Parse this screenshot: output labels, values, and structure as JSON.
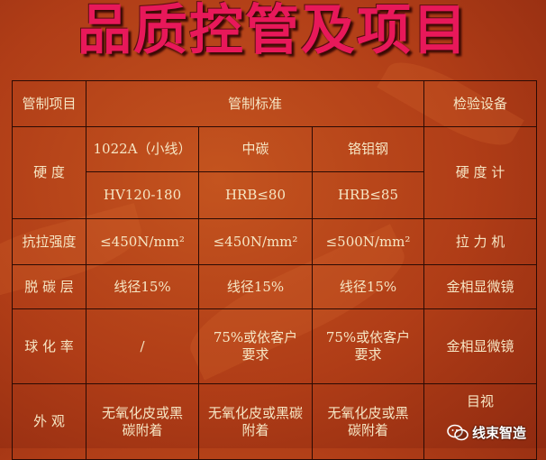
{
  "title": "品质控管及项目",
  "table": {
    "headers": [
      "管制项目",
      "管制标准",
      "检验设备"
    ],
    "hardness": {
      "label": "硬 度",
      "materials": [
        "1022A（小线）",
        "中碳",
        "铬钼钢"
      ],
      "values": [
        "HV120-180",
        "HRB≤80",
        "HRB≤85"
      ],
      "equipment": "硬 度 计"
    },
    "rows": [
      {
        "label": "抗拉强度",
        "values": [
          "≤450N/mm²",
          "≤450N/mm²",
          "≤500N/mm²"
        ],
        "equipment": "拉 力 机"
      },
      {
        "label": "脱 碳 层",
        "values": [
          "线径15%",
          "线径15%",
          "线径15%"
        ],
        "equipment": "金相显微镜"
      },
      {
        "label": "球 化 率",
        "values": [
          "/",
          "75%或依客户要求",
          "75%或依客户要求"
        ],
        "equipment": "金相显微镜"
      },
      {
        "label": "外 观",
        "values": [
          "无氧化皮或黑碳附着",
          "无氧化皮或黑碳附着",
          "无氧化皮或黑碳附着"
        ],
        "equipment": "目视"
      }
    ]
  },
  "watermark": {
    "icon": "wechat-icon",
    "text": "线束智造"
  }
}
